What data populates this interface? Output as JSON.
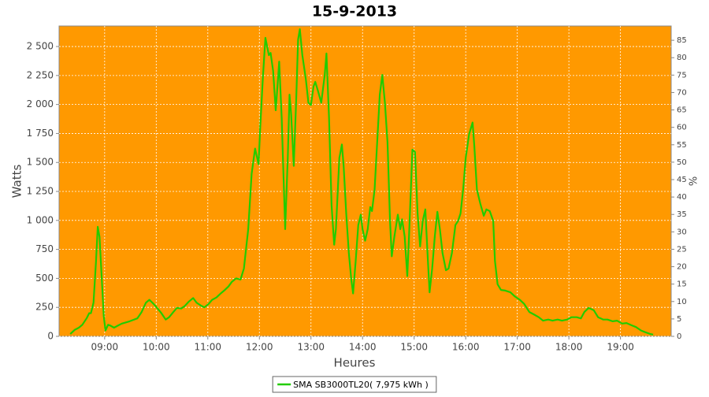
{
  "chart_data": {
    "type": "line",
    "title": "15-9-2013",
    "x_label": "Heures",
    "y_label": "Watts",
    "y2_label": "%",
    "plot_background": "#ff9900",
    "grid": true,
    "xlim": [
      "08:07",
      "19:59"
    ],
    "xticks": [
      "09:00",
      "10:00",
      "11:00",
      "12:00",
      "13:00",
      "14:00",
      "15:00",
      "16:00",
      "17:00",
      "18:00",
      "19:00"
    ],
    "ylim": [
      0,
      2677
    ],
    "yticks": [
      0,
      250,
      500,
      750,
      {
        "value": 1000,
        "label": "1 000"
      },
      {
        "value": 1250,
        "label": "1 250"
      },
      {
        "value": 1500,
        "label": "1 500"
      },
      {
        "value": 1750,
        "label": "1 750"
      },
      {
        "value": 2000,
        "label": "2 000"
      },
      {
        "value": 2250,
        "label": "2 250"
      },
      {
        "value": 2500,
        "label": "2 500"
      }
    ],
    "y2lim": [
      0,
      89.1
    ],
    "y2ticks": [
      0,
      5,
      10,
      15,
      20,
      25,
      30,
      35,
      40,
      45,
      50,
      55,
      60,
      65,
      70,
      75,
      80,
      85
    ],
    "legend": "bottom",
    "x": [
      "08:20",
      "08:25",
      "08:30",
      "08:34",
      "08:39",
      "08:42",
      "08:44",
      "08:47",
      "08:50",
      "08:52",
      "08:54",
      "08:56",
      "08:59",
      "09:01",
      "09:04",
      "09:06",
      "09:11",
      "09:16",
      "09:20",
      "09:29",
      "09:38",
      "09:43",
      "09:48",
      "09:52",
      "09:57",
      "10:01",
      "10:06",
      "10:11",
      "10:15",
      "10:20",
      "10:24",
      "10:29",
      "10:33",
      "10:38",
      "10:43",
      "10:47",
      "10:52",
      "10:56",
      "11:01",
      "11:05",
      "11:10",
      "11:15",
      "11:19",
      "11:24",
      "11:28",
      "11:33",
      "11:38",
      "11:42",
      "11:47",
      "11:51",
      "11:55",
      "11:59",
      "12:01",
      "12:04",
      "12:07",
      "12:11",
      "12:13",
      "12:16",
      "12:19",
      "12:21",
      "12:23",
      "12:26",
      "12:30",
      "12:33",
      "12:35",
      "12:37",
      "12:40",
      "12:43",
      "12:45",
      "12:47",
      "12:50",
      "12:54",
      "12:57",
      "13:00",
      "13:03",
      "13:05",
      "13:08",
      "13:12",
      "13:16",
      "13:18",
      "13:21",
      "13:24",
      "13:27",
      "13:29",
      "13:33",
      "13:36",
      "13:38",
      "13:41",
      "13:44",
      "13:47",
      "13:49",
      "13:52",
      "13:55",
      "13:58",
      "14:00",
      "14:03",
      "14:06",
      "14:09",
      "14:11",
      "14:14",
      "14:17",
      "14:20",
      "14:23",
      "14:26",
      "14:29",
      "14:32",
      "14:34",
      "14:37",
      "14:41",
      "14:44",
      "14:46",
      "14:49",
      "14:52",
      "14:54",
      "14:58",
      "15:01",
      "15:04",
      "15:07",
      "15:10",
      "15:13",
      "15:16",
      "15:18",
      "15:21",
      "15:24",
      "15:27",
      "15:30",
      "15:33",
      "15:37",
      "15:40",
      "15:44",
      "15:48",
      "15:51",
      "15:54",
      "15:57",
      "16:00",
      "16:04",
      "16:08",
      "16:10",
      "16:13",
      "16:17",
      "16:21",
      "16:24",
      "16:28",
      "16:32",
      "16:34",
      "16:37",
      "16:41",
      "16:46",
      "16:52",
      "16:57",
      "17:03",
      "17:08",
      "17:14",
      "17:19",
      "17:25",
      "17:30",
      "17:36",
      "17:41",
      "17:47",
      "17:52",
      "17:58",
      "18:03",
      "18:09",
      "18:14",
      "18:18",
      "18:23",
      "18:29",
      "18:34",
      "18:40",
      "18:45",
      "18:51",
      "18:56",
      "19:02",
      "19:07",
      "19:13",
      "19:18",
      "19:24",
      "19:29",
      "19:35",
      "19:38"
    ],
    "series": [
      {
        "name": "SMA SB3000TL20( 7,975 kWh )",
        "color": "#22cc00",
        "values": [
          20,
          55,
          75,
          100,
          155,
          200,
          200,
          290,
          650,
          945,
          860,
          585,
          175,
          50,
          100,
          95,
          75,
          95,
          110,
          130,
          155,
          210,
          290,
          315,
          280,
          245,
          200,
          145,
          165,
          210,
          245,
          240,
          260,
          300,
          330,
          290,
          265,
          250,
          280,
          315,
          335,
          370,
          395,
          430,
          470,
          500,
          490,
          585,
          925,
          1400,
          1620,
          1485,
          1810,
          2220,
          2575,
          2425,
          2445,
          2290,
          1950,
          2155,
          2370,
          1880,
          925,
          1540,
          2085,
          1915,
          1470,
          2085,
          2560,
          2650,
          2425,
          2220,
          2015,
          1995,
          2155,
          2195,
          2120,
          2015,
          2255,
          2440,
          1880,
          1130,
          790,
          925,
          1540,
          1655,
          1470,
          1060,
          720,
          485,
          370,
          650,
          960,
          1050,
          925,
          825,
          925,
          1115,
          1080,
          1265,
          1675,
          2085,
          2255,
          2015,
          1675,
          995,
          690,
          860,
          1050,
          925,
          1010,
          860,
          520,
          860,
          1610,
          1590,
          1060,
          775,
          995,
          1095,
          650,
          380,
          585,
          860,
          1075,
          925,
          720,
          570,
          585,
          720,
          960,
          995,
          1060,
          1265,
          1540,
          1745,
          1845,
          1640,
          1265,
          1145,
          1040,
          1095,
          1080,
          995,
          650,
          450,
          400,
          395,
          380,
          345,
          315,
          280,
          210,
          190,
          165,
          135,
          145,
          135,
          145,
          135,
          145,
          165,
          165,
          155,
          210,
          245,
          225,
          165,
          145,
          145,
          130,
          135,
          110,
          115,
          95,
          80,
          50,
          35,
          20,
          15
        ]
      }
    ]
  }
}
